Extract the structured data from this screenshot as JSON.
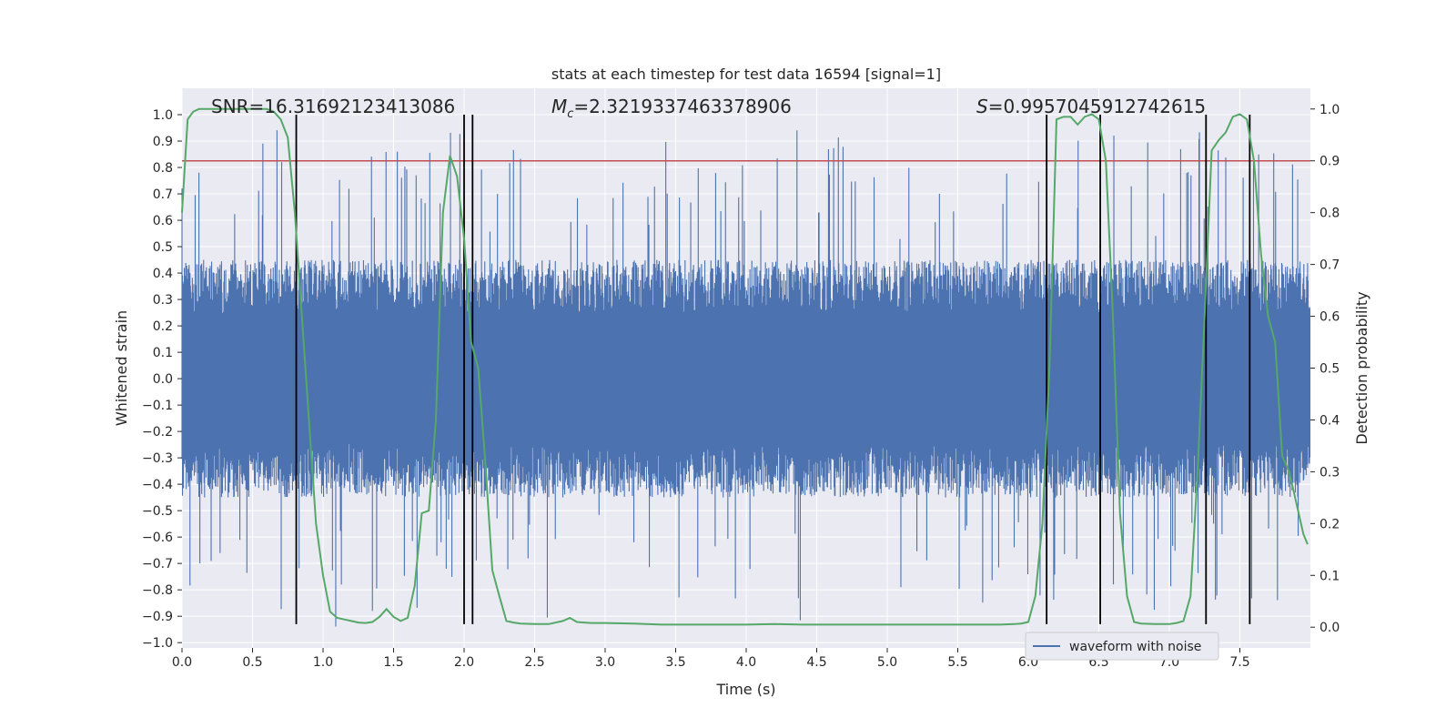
{
  "chart_data": {
    "type": "line",
    "title": "stats at each timestep for test data 16594 [signal=1]",
    "xlabel": "Time (s)",
    "ylabel_left": "Whitened strain",
    "ylabel_right": "Detection probability",
    "xlim": [
      0.0,
      8.0
    ],
    "ylim_left": [
      -1.02,
      1.1
    ],
    "ylim_right": [
      -0.04,
      1.04
    ],
    "x_ticks": [
      0.0,
      0.5,
      1.0,
      1.5,
      2.0,
      2.5,
      3.0,
      3.5,
      4.0,
      4.5,
      5.0,
      5.5,
      6.0,
      6.5,
      7.0,
      7.5
    ],
    "x_tick_labels": [
      "0.0",
      "0.5",
      "1.0",
      "1.5",
      "2.0",
      "2.5",
      "3.0",
      "3.5",
      "4.0",
      "4.5",
      "5.0",
      "5.5",
      "6.0",
      "6.5",
      "7.0",
      "7.5"
    ],
    "y_left_ticks": [
      -1.0,
      -0.9,
      -0.8,
      -0.7,
      -0.6,
      -0.5,
      -0.4,
      -0.3,
      -0.2,
      -0.1,
      0.0,
      0.1,
      0.2,
      0.3,
      0.4,
      0.5,
      0.6,
      0.7,
      0.8,
      0.9,
      1.0
    ],
    "y_left_tick_labels": [
      "−1.0",
      "−0.9",
      "−0.8",
      "−0.7",
      "−0.6",
      "−0.5",
      "−0.4",
      "−0.3",
      "−0.2",
      "−0.1",
      "0.0",
      "0.1",
      "0.2",
      "0.3",
      "0.4",
      "0.5",
      "0.6",
      "0.7",
      "0.8",
      "0.9",
      "1.0"
    ],
    "y_right_ticks": [
      0.0,
      0.1,
      0.2,
      0.3,
      0.4,
      0.5,
      0.6,
      0.7,
      0.8,
      0.9,
      1.0
    ],
    "y_right_tick_labels": [
      "0.0",
      "0.1",
      "0.2",
      "0.3",
      "0.4",
      "0.5",
      "0.6",
      "0.7",
      "0.8",
      "0.9",
      "1.0"
    ],
    "grid": true,
    "annotations": {
      "snr": "SNR=16.31692123413086",
      "mc_symbol": "M",
      "mc_sub": "c",
      "mc_value": "=2.3219337463378906",
      "s_symbol": "S",
      "s_value": "=0.9957045912742615"
    },
    "threshold": {
      "axis": "right",
      "value": 0.9,
      "color": "#c44e52"
    },
    "vertical_lines": {
      "x": [
        0.81,
        2.0,
        2.06,
        6.13,
        6.51,
        7.26,
        7.57
      ],
      "from": -0.93,
      "to": 1.0,
      "color": "#000000"
    },
    "waveform": {
      "name": "waveform with noise",
      "axis": "left",
      "color": "#4c72b0",
      "t_start": 0.0,
      "t_end": 8.0,
      "n_samples": 2400,
      "typical_amplitude": 0.45,
      "max_peak": 1.0,
      "min_peak": -0.95
    },
    "probability": {
      "axis": "right",
      "color": "#55a868",
      "x": [
        0.0,
        0.04,
        0.08,
        0.12,
        0.2,
        0.3,
        0.4,
        0.5,
        0.6,
        0.65,
        0.7,
        0.75,
        0.8,
        0.85,
        0.9,
        0.95,
        1.0,
        1.05,
        1.1,
        1.15,
        1.2,
        1.25,
        1.3,
        1.35,
        1.4,
        1.45,
        1.5,
        1.55,
        1.6,
        1.65,
        1.7,
        1.75,
        1.8,
        1.85,
        1.9,
        1.95,
        2.0,
        2.05,
        2.1,
        2.15,
        2.2,
        2.25,
        2.3,
        2.35,
        2.4,
        2.5,
        2.6,
        2.7,
        2.75,
        2.8,
        2.9,
        3.0,
        3.2,
        3.4,
        3.6,
        3.8,
        4.0,
        4.2,
        4.4,
        4.6,
        4.8,
        5.0,
        5.2,
        5.4,
        5.6,
        5.8,
        5.9,
        5.95,
        6.0,
        6.05,
        6.1,
        6.15,
        6.2,
        6.25,
        6.3,
        6.35,
        6.4,
        6.45,
        6.5,
        6.55,
        6.6,
        6.65,
        6.7,
        6.75,
        6.8,
        6.9,
        7.0,
        7.05,
        7.1,
        7.15,
        7.2,
        7.25,
        7.3,
        7.35,
        7.4,
        7.45,
        7.5,
        7.55,
        7.6,
        7.65,
        7.7,
        7.75,
        7.8,
        7.85,
        7.9,
        7.95,
        7.98
      ],
      "y": [
        0.8,
        0.98,
        0.995,
        1.0,
        1.0,
        1.0,
        1.0,
        1.0,
        1.0,
        0.995,
        0.98,
        0.945,
        0.8,
        0.6,
        0.4,
        0.2,
        0.1,
        0.03,
        0.018,
        0.015,
        0.012,
        0.009,
        0.008,
        0.01,
        0.02,
        0.035,
        0.02,
        0.012,
        0.018,
        0.08,
        0.22,
        0.225,
        0.4,
        0.8,
        0.91,
        0.87,
        0.75,
        0.55,
        0.5,
        0.32,
        0.11,
        0.06,
        0.012,
        0.009,
        0.007,
        0.006,
        0.006,
        0.012,
        0.018,
        0.01,
        0.008,
        0.008,
        0.007,
        0.005,
        0.005,
        0.005,
        0.005,
        0.006,
        0.005,
        0.005,
        0.005,
        0.005,
        0.005,
        0.005,
        0.005,
        0.005,
        0.006,
        0.007,
        0.01,
        0.06,
        0.2,
        0.5,
        0.98,
        0.985,
        0.985,
        0.97,
        0.985,
        0.99,
        0.98,
        0.9,
        0.6,
        0.22,
        0.06,
        0.01,
        0.007,
        0.006,
        0.006,
        0.008,
        0.012,
        0.06,
        0.3,
        0.6,
        0.92,
        0.94,
        0.955,
        0.985,
        0.99,
        0.98,
        0.9,
        0.72,
        0.6,
        0.55,
        0.33,
        0.3,
        0.24,
        0.18,
        0.16
      ]
    },
    "legend": {
      "entries": [
        "waveform with noise"
      ],
      "placement": "bottom-right"
    }
  }
}
